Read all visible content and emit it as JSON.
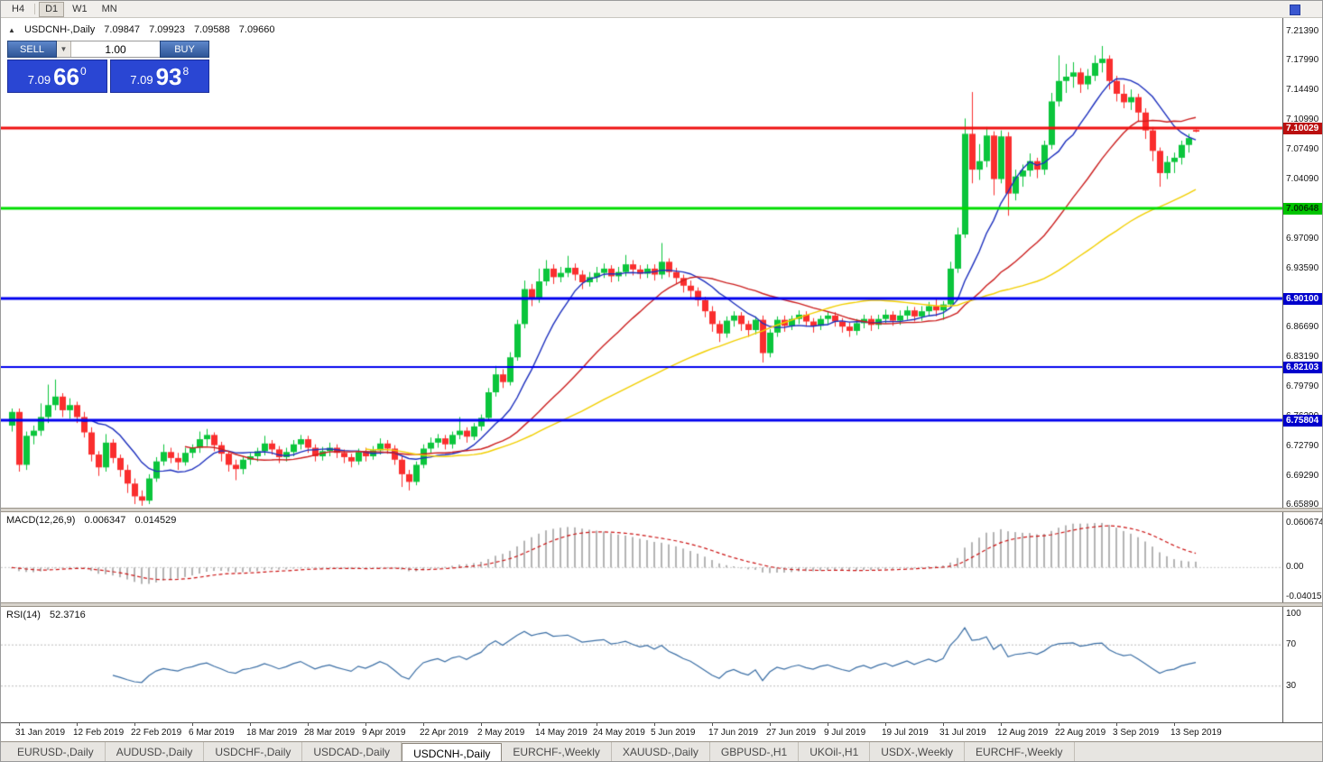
{
  "toolbar": {
    "timeframes": [
      {
        "label": "H4",
        "active": false
      },
      {
        "label": "D1",
        "active": true
      },
      {
        "label": "W1",
        "active": false
      },
      {
        "label": "MN",
        "active": false
      }
    ]
  },
  "chart_header": {
    "expander": "▲",
    "symbol_label": "USDCNH-,Daily",
    "open": "7.09847",
    "high": "7.09923",
    "low": "7.09588",
    "close": "7.09660"
  },
  "one_click": {
    "sell_label": "SELL",
    "buy_label": "BUY",
    "volume": "1.00",
    "dropdown_glyph": "▼",
    "sell_price": {
      "main": "7.09",
      "pips": "66",
      "frac": "0"
    },
    "buy_price": {
      "main": "7.09",
      "pips": "93",
      "frac": "8"
    }
  },
  "chart_data": {
    "type": "candlestick",
    "symbol": "USDCNH",
    "timeframe": "Daily",
    "title": "USDCNH-,Daily",
    "ohlc_current": {
      "open": 7.09847,
      "high": 7.09923,
      "low": 7.09588,
      "close": 7.0966
    },
    "price_range": {
      "top": 7.2139,
      "bottom": 6.6589
    },
    "y_axis_ticks": [
      "7.21390",
      "7.17990",
      "7.14490",
      "7.10990",
      "7.07490",
      "7.04090",
      "7.00590",
      "6.97090",
      "6.93590",
      "6.90090",
      "6.86690",
      "6.83190",
      "6.79790",
      "6.76290",
      "6.72790",
      "6.69290",
      "6.65890"
    ],
    "x_axis_labels": [
      {
        "label": "31 Jan 2019",
        "index": 1
      },
      {
        "label": "12 Feb 2019",
        "index": 9
      },
      {
        "label": "22 Feb 2019",
        "index": 17
      },
      {
        "label": "6 Mar 2019",
        "index": 25
      },
      {
        "label": "18 Mar 2019",
        "index": 33
      },
      {
        "label": "28 Mar 2019",
        "index": 41
      },
      {
        "label": "9 Apr 2019",
        "index": 49
      },
      {
        "label": "22 Apr 2019",
        "index": 57
      },
      {
        "label": "2 May 2019",
        "index": 65
      },
      {
        "label": "14 May 2019",
        "index": 73
      },
      {
        "label": "24 May 2019",
        "index": 81
      },
      {
        "label": "5 Jun 2019",
        "index": 89
      },
      {
        "label": "17 Jun 2019",
        "index": 97
      },
      {
        "label": "27 Jun 2019",
        "index": 105
      },
      {
        "label": "9 Jul 2019",
        "index": 113
      },
      {
        "label": "19 Jul 2019",
        "index": 121
      },
      {
        "label": "31 Jul 2019",
        "index": 129
      },
      {
        "label": "12 Aug 2019",
        "index": 137
      },
      {
        "label": "22 Aug 2019",
        "index": 145
      },
      {
        "label": "3 Sep 2019",
        "index": 153
      },
      {
        "label": "13 Sep 2019",
        "index": 161
      }
    ],
    "horizontal_lines": [
      {
        "price": 7.10029,
        "label": "7.10029",
        "color": "#ee1111",
        "label_bg": "#bb0f0f",
        "label_fg": "#ffffff",
        "width": 3
      },
      {
        "price": 7.00648,
        "label": "7.00648",
        "color": "#00dd00",
        "label_bg": "#00c400",
        "label_fg": "#003300",
        "width": 3
      },
      {
        "price": 6.901,
        "label": "6.90100",
        "color": "#0000ee",
        "label_bg": "#0000cc",
        "label_fg": "#ffffff",
        "width": 3
      },
      {
        "price": 6.82103,
        "label": "6.82103",
        "color": "#0000ee",
        "label_bg": "#0000cc",
        "label_fg": "#ffffff",
        "width": 2
      },
      {
        "price": 6.75804,
        "label": "6.75804",
        "color": "#0000ee",
        "label_bg": "#0000cc",
        "label_fg": "#ffffff",
        "width": 3
      }
    ],
    "moving_averages": [
      {
        "name": "fast-ma",
        "period": 10,
        "color": "#1c2fbe"
      },
      {
        "name": "medium-ma",
        "period": 25,
        "color": "#cc1f1f"
      },
      {
        "name": "slow-ma",
        "period": 50,
        "color": "#f2cf00"
      }
    ],
    "colors": {
      "bull": "#0bc53c",
      "bear": "#fa2e2e",
      "background": "#ffffff",
      "wick_bull": "#0bc53c",
      "wick_bear": "#fa2e2e"
    },
    "candles": [
      [
        6.752,
        6.772,
        6.745,
        6.768
      ],
      [
        6.768,
        6.772,
        6.698,
        6.706
      ],
      [
        6.706,
        6.745,
        6.7,
        6.74
      ],
      [
        6.74,
        6.752,
        6.73,
        6.746
      ],
      [
        6.746,
        6.778,
        6.74,
        6.762
      ],
      [
        6.762,
        6.8,
        6.755,
        6.776
      ],
      [
        6.776,
        6.806,
        6.77,
        6.786
      ],
      [
        6.786,
        6.79,
        6.762,
        6.77
      ],
      [
        6.77,
        6.784,
        6.76,
        6.776
      ],
      [
        6.776,
        6.78,
        6.755,
        6.762
      ],
      [
        6.762,
        6.768,
        6.738,
        6.744
      ],
      [
        6.744,
        6.75,
        6.71,
        6.718
      ],
      [
        6.718,
        6.722,
        6.693,
        6.703
      ],
      [
        6.703,
        6.742,
        6.698,
        6.732
      ],
      [
        6.732,
        6.736,
        6.708,
        6.714
      ],
      [
        6.714,
        6.718,
        6.692,
        6.7
      ],
      [
        6.7,
        6.706,
        6.673,
        6.684
      ],
      [
        6.684,
        6.69,
        6.66,
        6.669
      ],
      [
        6.669,
        6.676,
        6.658,
        6.664
      ],
      [
        6.664,
        6.695,
        6.66,
        6.69
      ],
      [
        6.69,
        6.715,
        6.686,
        6.71
      ],
      [
        6.71,
        6.73,
        6.705,
        6.721
      ],
      [
        6.721,
        6.726,
        6.708,
        6.714
      ],
      [
        6.714,
        6.72,
        6.7,
        6.709
      ],
      [
        6.709,
        6.726,
        6.705,
        6.72
      ],
      [
        6.72,
        6.73,
        6.714,
        6.726
      ],
      [
        6.726,
        6.745,
        6.72,
        6.736
      ],
      [
        6.736,
        6.748,
        6.728,
        6.741
      ],
      [
        6.741,
        6.744,
        6.722,
        6.729
      ],
      [
        6.729,
        6.733,
        6.71,
        6.719
      ],
      [
        6.719,
        6.722,
        6.698,
        6.706
      ],
      [
        6.706,
        6.712,
        6.688,
        6.701
      ],
      [
        6.701,
        6.716,
        6.695,
        6.712
      ],
      [
        6.712,
        6.72,
        6.706,
        6.716
      ],
      [
        6.716,
        6.726,
        6.71,
        6.722
      ],
      [
        6.722,
        6.74,
        6.717,
        6.731
      ],
      [
        6.731,
        6.735,
        6.718,
        6.724
      ],
      [
        6.724,
        6.728,
        6.708,
        6.715
      ],
      [
        6.715,
        6.726,
        6.71,
        6.721
      ],
      [
        6.721,
        6.735,
        6.716,
        6.73
      ],
      [
        6.73,
        6.741,
        6.724,
        6.736
      ],
      [
        6.736,
        6.74,
        6.72,
        6.726
      ],
      [
        6.726,
        6.73,
        6.71,
        6.716
      ],
      [
        6.716,
        6.727,
        6.711,
        6.722
      ],
      [
        6.722,
        6.732,
        6.716,
        6.726
      ],
      [
        6.726,
        6.73,
        6.714,
        6.72
      ],
      [
        6.72,
        6.724,
        6.708,
        6.715
      ],
      [
        6.715,
        6.719,
        6.703,
        6.71
      ],
      [
        6.71,
        6.725,
        6.706,
        6.721
      ],
      [
        6.721,
        6.726,
        6.71,
        6.716
      ],
      [
        6.716,
        6.728,
        6.712,
        6.723
      ],
      [
        6.723,
        6.737,
        6.718,
        6.731
      ],
      [
        6.731,
        6.735,
        6.719,
        6.725
      ],
      [
        6.725,
        6.729,
        6.706,
        6.712
      ],
      [
        6.712,
        6.716,
        6.68,
        6.695
      ],
      [
        6.695,
        6.7,
        6.676,
        6.686
      ],
      [
        6.686,
        6.71,
        6.682,
        6.706
      ],
      [
        6.706,
        6.73,
        6.702,
        6.725
      ],
      [
        6.725,
        6.738,
        6.72,
        6.732
      ],
      [
        6.732,
        6.742,
        6.726,
        6.737
      ],
      [
        6.737,
        6.741,
        6.724,
        6.73
      ],
      [
        6.73,
        6.745,
        6.725,
        6.741
      ],
      [
        6.741,
        6.762,
        6.736,
        6.746
      ],
      [
        6.746,
        6.75,
        6.732,
        6.739
      ],
      [
        6.739,
        6.755,
        6.735,
        6.751
      ],
      [
        6.751,
        6.765,
        6.746,
        6.761
      ],
      [
        6.761,
        6.796,
        6.758,
        6.791
      ],
      [
        6.791,
        6.822,
        6.786,
        6.812
      ],
      [
        6.812,
        6.818,
        6.796,
        6.803
      ],
      [
        6.803,
        6.838,
        6.799,
        6.832
      ],
      [
        6.832,
        6.876,
        6.828,
        6.871
      ],
      [
        6.871,
        6.922,
        6.866,
        6.912
      ],
      [
        6.912,
        6.918,
        6.892,
        6.901
      ],
      [
        6.901,
        6.936,
        6.896,
        6.921
      ],
      [
        6.921,
        6.946,
        6.916,
        6.936
      ],
      [
        6.936,
        6.941,
        6.918,
        6.926
      ],
      [
        6.926,
        6.938,
        6.92,
        6.931
      ],
      [
        6.931,
        6.951,
        6.926,
        6.937
      ],
      [
        6.937,
        6.942,
        6.922,
        6.929
      ],
      [
        6.929,
        6.934,
        6.912,
        6.92
      ],
      [
        6.92,
        6.932,
        6.915,
        6.926
      ],
      [
        6.926,
        6.938,
        6.92,
        6.931
      ],
      [
        6.931,
        6.942,
        6.925,
        6.936
      ],
      [
        6.936,
        6.94,
        6.92,
        6.927
      ],
      [
        6.927,
        6.938,
        6.921,
        6.932
      ],
      [
        6.932,
        6.952,
        6.927,
        6.941
      ],
      [
        6.941,
        6.946,
        6.928,
        6.935
      ],
      [
        6.935,
        6.94,
        6.924,
        6.93
      ],
      [
        6.93,
        6.941,
        6.925,
        6.936
      ],
      [
        6.936,
        6.941,
        6.922,
        6.929
      ],
      [
        6.929,
        6.966,
        6.924,
        6.944
      ],
      [
        6.944,
        6.948,
        6.926,
        6.932
      ],
      [
        6.932,
        6.937,
        6.918,
        6.925
      ],
      [
        6.925,
        6.929,
        6.908,
        6.916
      ],
      [
        6.916,
        6.922,
        6.902,
        6.91
      ],
      [
        6.91,
        6.914,
        6.892,
        6.899
      ],
      [
        6.899,
        6.903,
        6.879,
        6.886
      ],
      [
        6.886,
        6.892,
        6.862,
        6.871
      ],
      [
        6.871,
        6.875,
        6.85,
        6.86
      ],
      [
        6.86,
        6.88,
        6.855,
        6.875
      ],
      [
        6.875,
        6.886,
        6.868,
        6.881
      ],
      [
        6.881,
        6.885,
        6.863,
        6.871
      ],
      [
        6.871,
        6.875,
        6.856,
        6.864
      ],
      [
        6.864,
        6.88,
        6.859,
        6.876
      ],
      [
        6.876,
        6.881,
        6.826,
        6.837
      ],
      [
        6.837,
        6.865,
        6.832,
        6.861
      ],
      [
        6.861,
        6.88,
        6.856,
        6.876
      ],
      [
        6.876,
        6.881,
        6.862,
        6.869
      ],
      [
        6.869,
        6.881,
        6.864,
        6.877
      ],
      [
        6.877,
        6.887,
        6.871,
        6.882
      ],
      [
        6.882,
        6.886,
        6.868,
        6.874
      ],
      [
        6.874,
        6.878,
        6.861,
        6.869
      ],
      [
        6.869,
        6.881,
        6.864,
        6.877
      ],
      [
        6.877,
        6.886,
        6.87,
        6.881
      ],
      [
        6.881,
        6.885,
        6.868,
        6.874
      ],
      [
        6.874,
        6.878,
        6.861,
        6.868
      ],
      [
        6.868,
        6.873,
        6.856,
        6.863
      ],
      [
        6.863,
        6.877,
        6.858,
        6.872
      ],
      [
        6.872,
        6.882,
        6.866,
        6.877
      ],
      [
        6.877,
        6.881,
        6.863,
        6.87
      ],
      [
        6.87,
        6.882,
        6.865,
        6.877
      ],
      [
        6.877,
        6.888,
        6.872,
        6.882
      ],
      [
        6.882,
        6.886,
        6.869,
        6.875
      ],
      [
        6.875,
        6.887,
        6.87,
        6.881
      ],
      [
        6.881,
        6.892,
        6.876,
        6.887
      ],
      [
        6.887,
        6.891,
        6.874,
        6.88
      ],
      [
        6.88,
        6.892,
        6.875,
        6.886
      ],
      [
        6.886,
        6.897,
        6.881,
        6.892
      ],
      [
        6.892,
        6.902,
        6.88,
        6.887
      ],
      [
        6.887,
        6.898,
        6.876,
        6.894
      ],
      [
        6.894,
        6.944,
        6.89,
        6.936
      ],
      [
        6.936,
        6.984,
        6.931,
        6.976
      ],
      [
        6.976,
        7.112,
        6.972,
        7.094
      ],
      [
        7.094,
        7.143,
        7.036,
        7.052
      ],
      [
        7.052,
        7.082,
        7.04,
        7.062
      ],
      [
        7.062,
        7.102,
        7.055,
        7.092
      ],
      [
        7.092,
        7.097,
        7.022,
        7.041
      ],
      [
        7.041,
        7.098,
        7.036,
        7.091
      ],
      [
        7.091,
        7.096,
        6.998,
        7.024
      ],
      [
        7.024,
        7.052,
        7.016,
        7.044
      ],
      [
        7.044,
        7.058,
        7.032,
        7.051
      ],
      [
        7.051,
        7.071,
        7.044,
        7.062
      ],
      [
        7.062,
        7.066,
        7.042,
        7.052
      ],
      [
        7.052,
        7.086,
        7.046,
        7.081
      ],
      [
        7.081,
        7.142,
        7.076,
        7.132
      ],
      [
        7.132,
        7.186,
        7.126,
        7.156
      ],
      [
        7.156,
        7.176,
        7.142,
        7.161
      ],
      [
        7.161,
        7.178,
        7.148,
        7.166
      ],
      [
        7.166,
        7.171,
        7.142,
        7.152
      ],
      [
        7.152,
        7.17,
        7.146,
        7.162
      ],
      [
        7.162,
        7.186,
        7.156,
        7.177
      ],
      [
        7.177,
        7.197,
        7.166,
        7.182
      ],
      [
        7.182,
        7.186,
        7.146,
        7.156
      ],
      [
        7.156,
        7.162,
        7.132,
        7.141
      ],
      [
        7.141,
        7.152,
        7.124,
        7.131
      ],
      [
        7.131,
        7.146,
        7.122,
        7.137
      ],
      [
        7.137,
        7.141,
        7.108,
        7.119
      ],
      [
        7.119,
        7.124,
        7.088,
        7.098
      ],
      [
        7.098,
        7.102,
        7.062,
        7.074
      ],
      [
        7.074,
        7.078,
        7.032,
        7.048
      ],
      [
        7.048,
        7.068,
        7.041,
        7.061
      ],
      [
        7.061,
        7.072,
        7.048,
        7.066
      ],
      [
        7.066,
        7.086,
        7.058,
        7.081
      ],
      [
        7.081,
        7.094,
        7.072,
        7.089
      ],
      [
        7.09847,
        7.09923,
        7.09588,
        7.0966
      ]
    ]
  },
  "macd_panel": {
    "title": "MACD(12,26,9)",
    "value_main": "0.006347",
    "value_signal": "0.014529",
    "fast": 12,
    "slow": 26,
    "signal": 9,
    "axis": [
      {
        "v": 0.060674,
        "label": "0.060674"
      },
      {
        "v": 0,
        "label": "0.00"
      },
      {
        "v": -0.040152,
        "label": "-0.040152"
      }
    ],
    "histogram_color": "#b4b4b4",
    "signal_color": "#cc1414"
  },
  "rsi_panel": {
    "title": "RSI(14)",
    "value": "52.3716",
    "period": 14,
    "line_color": "#3a6ea5",
    "levels": [
      {
        "v": 100,
        "label": "100",
        "dotted": false
      },
      {
        "v": 70,
        "label": "70",
        "dotted": true
      },
      {
        "v": 30,
        "label": "30",
        "dotted": true
      }
    ]
  },
  "tabs": [
    {
      "label": "EURUSD-,Daily",
      "active": false
    },
    {
      "label": "AUDUSD-,Daily",
      "active": false
    },
    {
      "label": "USDCHF-,Daily",
      "active": false
    },
    {
      "label": "USDCAD-,Daily",
      "active": false
    },
    {
      "label": "USDCNH-,Daily",
      "active": true
    },
    {
      "label": "EURCHF-,Weekly",
      "active": false
    },
    {
      "label": "XAUUSD-,Daily",
      "active": false
    },
    {
      "label": "GBPUSD-,H1",
      "active": false
    },
    {
      "label": "UKOil-,H1",
      "active": false
    },
    {
      "label": "USDX-,Weekly",
      "active": false
    },
    {
      "label": "EURCHF-,Weekly",
      "active": false
    }
  ]
}
